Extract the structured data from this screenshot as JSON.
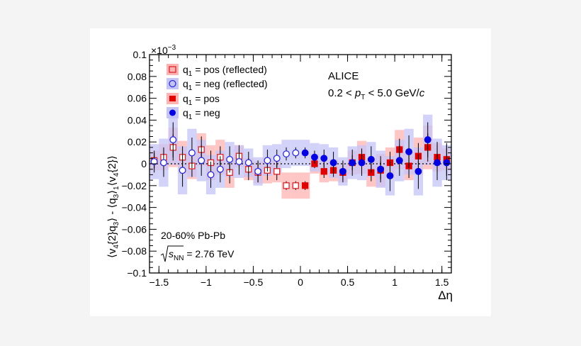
{
  "chart_data": {
    "type": "scatter",
    "xlabel": "Δη",
    "ylabel_parts": {
      "t1": "⟨v",
      "s1": "4",
      "t2": "{2}q",
      "s2": "3",
      "t3": "⟩ - ⟨q",
      "s3": "3",
      "t4": "⟩",
      "s4": "1",
      "t5": "⟨v",
      "s5": "4",
      "t6": "{2}⟩"
    },
    "y_exponent": "×10",
    "y_exponent_power": "−3",
    "xlim": [
      -1.6,
      1.6
    ],
    "ylim": [
      -0.1,
      0.1
    ],
    "x_ticks": [
      -1.5,
      -1,
      -0.5,
      0,
      0.5,
      1,
      1.5
    ],
    "x_tick_labels": [
      "−1.5",
      "−1",
      "−0.5",
      "0",
      "0.5",
      "1",
      "1.5"
    ],
    "y_ticks": [
      -0.1,
      -0.08,
      -0.06,
      -0.04,
      -0.02,
      0,
      0.02,
      0.04,
      0.06,
      0.08,
      0.1
    ],
    "y_tick_labels": [
      "−0.1",
      "−0.08",
      "−0.06",
      "−0.04",
      "−0.02",
      "0",
      "0.02",
      "0.04",
      "0.06",
      "0.08",
      "0.1"
    ],
    "reference_line_y": 0,
    "annotations": {
      "experiment": "ALICE",
      "kinematics": {
        "pre": "0.2 < ",
        "p": "p",
        "sub": "T",
        "post": " < 5.0 GeV/",
        "c": "c"
      },
      "centrality": "20-60% Pb-Pb",
      "energy": {
        "s": "s",
        "sub": "NN",
        "post": " = 2.76 TeV"
      }
    },
    "legend_position": "top-left",
    "series": [
      {
        "name": "pos (reflected)",
        "legend": {
          "q": "q",
          "sub": "1",
          "text": " = pos (reflected)"
        },
        "marker": "open-square",
        "color": "#d9262b",
        "band_color": "#ffb3b3",
        "x": [
          -1.55,
          -1.45,
          -1.35,
          -1.25,
          -1.15,
          -1.05,
          -0.95,
          -0.85,
          -0.75,
          -0.65,
          -0.55,
          -0.45,
          -0.35,
          -0.25,
          -0.15,
          -0.05
        ],
        "y": [
          0.003,
          0.006,
          0.015,
          0.006,
          -0.002,
          0.013,
          0.001,
          0.006,
          -0.008,
          0.007,
          -0.005,
          -0.008,
          -0.006,
          -0.007,
          -0.02,
          -0.02
        ],
        "yerr": [
          0.007,
          0.009,
          0.012,
          0.01,
          0.01,
          0.012,
          0.011,
          0.01,
          0.01,
          0.01,
          0.01,
          0.009,
          0.009,
          0.008,
          0.004,
          0.004
        ],
        "sys": [
          0.009,
          0.012,
          0.018,
          0.015,
          0.012,
          0.015,
          0.016,
          0.016,
          0.014,
          0.01,
          0.01,
          0.01,
          0.012,
          0.01,
          0.012,
          0.012
        ]
      },
      {
        "name": "neg (reflected)",
        "legend": {
          "q": "q",
          "sub": "1",
          "text": " = neg (reflected)"
        },
        "marker": "open-circle",
        "color": "#2d2dd6",
        "band_color": "#c4c4f7",
        "x": [
          -1.55,
          -1.45,
          -1.35,
          -1.25,
          -1.15,
          -1.05,
          -0.95,
          -0.85,
          -0.75,
          -0.65,
          -0.55,
          -0.45,
          -0.35,
          -0.25,
          -0.15,
          -0.05
        ],
        "y": [
          0.002,
          0.001,
          0.022,
          -0.006,
          0.01,
          0.003,
          -0.01,
          -0.005,
          0.004,
          0.002,
          0.001,
          -0.007,
          0.003,
          0.005,
          0.009,
          0.01
        ],
        "yerr": [
          0.01,
          0.013,
          0.016,
          0.015,
          0.014,
          0.014,
          0.012,
          0.012,
          0.012,
          0.012,
          0.01,
          0.01,
          0.01,
          0.008,
          0.006,
          0.005
        ],
        "sys": [
          0.016,
          0.022,
          0.023,
          0.022,
          0.022,
          0.019,
          0.018,
          0.017,
          0.016,
          0.015,
          0.013,
          0.013,
          0.014,
          0.013,
          0.013,
          0.012
        ]
      },
      {
        "name": "pos",
        "legend": {
          "q": "q",
          "sub": "1",
          "text": " = pos"
        },
        "marker": "filled-square",
        "color": "#e00000",
        "band_color": "#ffb3b3",
        "x": [
          0.05,
          0.15,
          0.25,
          0.35,
          0.45,
          0.55,
          0.65,
          0.75,
          0.85,
          0.95,
          1.05,
          1.15,
          1.25,
          1.35,
          1.45,
          1.55
        ],
        "y": [
          -0.02,
          0.0,
          -0.007,
          -0.006,
          -0.008,
          0.001,
          0.006,
          -0.008,
          -0.006,
          0.001,
          0.013,
          -0.002,
          0.007,
          0.015,
          0.006,
          0.004
        ],
        "yerr": [
          0.004,
          0.004,
          0.006,
          0.006,
          0.007,
          0.007,
          0.008,
          0.008,
          0.008,
          0.01,
          0.01,
          0.011,
          0.012,
          0.013,
          0.014,
          0.015
        ],
        "sys": [
          0.012,
          0.009,
          0.01,
          0.01,
          0.009,
          0.011,
          0.015,
          0.013,
          0.015,
          0.014,
          0.018,
          0.013,
          0.017,
          0.02,
          0.013,
          0.01
        ]
      },
      {
        "name": "neg",
        "legend": {
          "q": "q",
          "sub": "1",
          "text": " = neg"
        },
        "marker": "filled-circle",
        "color": "#0000e0",
        "band_color": "#c4c4f7",
        "x": [
          0.05,
          0.15,
          0.25,
          0.35,
          0.45,
          0.55,
          0.65,
          0.75,
          0.85,
          0.95,
          1.05,
          1.15,
          1.25,
          1.35,
          1.45,
          1.55
        ],
        "y": [
          0.01,
          0.006,
          0.005,
          0.001,
          -0.007,
          0.001,
          0.001,
          0.004,
          -0.005,
          -0.011,
          0.003,
          0.011,
          -0.007,
          0.022,
          0.001,
          0.001
        ],
        "yerr": [
          0.005,
          0.006,
          0.008,
          0.01,
          0.01,
          0.012,
          0.012,
          0.012,
          0.012,
          0.014,
          0.014,
          0.015,
          0.016,
          0.016,
          0.016,
          0.016
        ],
        "sys": [
          0.012,
          0.013,
          0.013,
          0.014,
          0.013,
          0.015,
          0.016,
          0.016,
          0.017,
          0.018,
          0.019,
          0.021,
          0.022,
          0.023,
          0.022,
          0.016
        ]
      }
    ]
  }
}
